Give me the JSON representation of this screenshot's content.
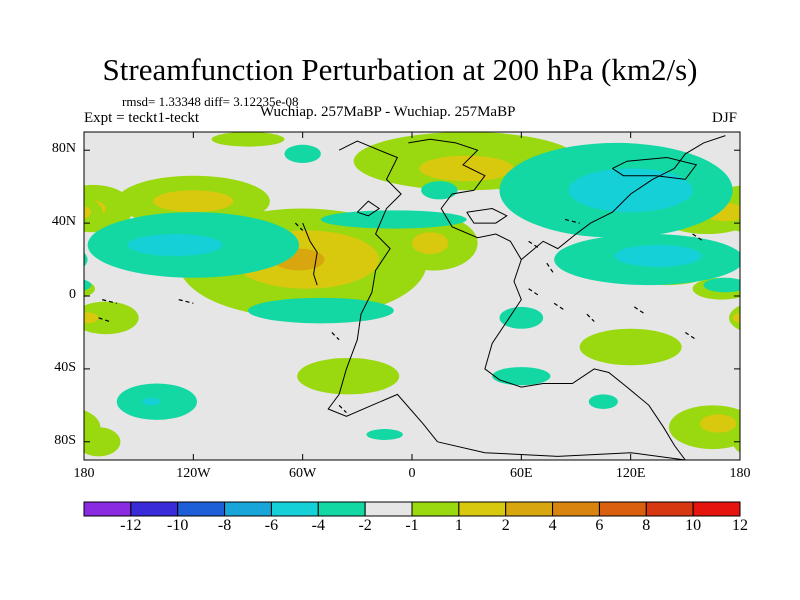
{
  "chart_data": {
    "type": "heatmap",
    "title": "Streamfunction Perturbation at 200 hPa (km2/s)",
    "stats_label": "rmsd= 1.33348 diff= 3.12235e-08",
    "left_label": "Expt = teckt1-teckt",
    "center_label": "Wuchiap. 257MaBP - Wuchiap. 257MaBP",
    "right_label": "DJF",
    "xlim": [
      -180,
      180
    ],
    "ylim": [
      -90,
      90
    ],
    "x_ticks": [
      {
        "value": -180,
        "label": "180"
      },
      {
        "value": -120,
        "label": "120W"
      },
      {
        "value": -60,
        "label": "60W"
      },
      {
        "value": 0,
        "label": "0"
      },
      {
        "value": 60,
        "label": "60E"
      },
      {
        "value": 120,
        "label": "120E"
      },
      {
        "value": 180,
        "label": "180"
      }
    ],
    "y_ticks": [
      {
        "value": 80,
        "label": "80N"
      },
      {
        "value": 40,
        "label": "40N"
      },
      {
        "value": 0,
        "label": "0"
      },
      {
        "value": -40,
        "label": "40S"
      },
      {
        "value": -80,
        "label": "80S"
      }
    ],
    "colorbar": {
      "colors": [
        "#8a2be2",
        "#3a2bd8",
        "#1e5fd8",
        "#18a6d8",
        "#16d0d8",
        "#13d8a4",
        "#e6e6e6",
        "#9ad80f",
        "#d8c90f",
        "#d8a70f",
        "#d8840f",
        "#d8600f",
        "#d8380f",
        "#e6140f"
      ],
      "labels": [
        "-12",
        "-10",
        "-8",
        "-6",
        "-4",
        "-2",
        "-1",
        "1",
        "2",
        "4",
        "6",
        "8",
        "10",
        "12"
      ]
    },
    "regions": [
      {
        "level": 2,
        "color": "#9ad80f",
        "lon": -120,
        "lat": 52,
        "rlon": 42,
        "rlat": 14
      },
      {
        "level": 4,
        "color": "#d8c90f",
        "lon": -120,
        "lat": 52,
        "rlon": 22,
        "rlat": 6
      },
      {
        "level": 2,
        "color": "#9ad80f",
        "lon": -175,
        "lat": 48,
        "rlon": 22,
        "rlat": 13
      },
      {
        "level": 4,
        "color": "#d8c90f",
        "lon": -178,
        "lat": 48,
        "rlon": 10,
        "rlat": 5
      },
      {
        "level": 2,
        "color": "#9ad80f",
        "lon": -60,
        "lat": 18,
        "rlon": 68,
        "rlat": 30
      },
      {
        "level": 4,
        "color": "#d8c90f",
        "lon": -58,
        "lat": 20,
        "rlon": 40,
        "rlat": 16
      },
      {
        "level": 6,
        "color": "#d8a70f",
        "lon": -62,
        "lat": 20,
        "rlon": 14,
        "rlat": 6
      },
      {
        "level": 2,
        "color": "#9ad80f",
        "lon": 12,
        "lat": 29,
        "rlon": 24,
        "rlat": 15
      },
      {
        "level": 4,
        "color": "#d8c90f",
        "lon": 10,
        "lat": 29,
        "rlon": 10,
        "rlat": 6
      },
      {
        "level": 2,
        "color": "#9ad80f",
        "lon": 30,
        "lat": 74,
        "rlon": 62,
        "rlat": 16
      },
      {
        "level": 4,
        "color": "#d8c90f",
        "lon": 30,
        "lat": 70,
        "rlon": 26,
        "rlat": 7
      },
      {
        "level": 2,
        "color": "#9ad80f",
        "lon": -90,
        "lat": 86,
        "rlon": 20,
        "rlat": 4
      },
      {
        "level": 2,
        "color": "#9ad80f",
        "lon": -168,
        "lat": -12,
        "rlon": 18,
        "rlat": 9
      },
      {
        "level": 4,
        "color": "#d8c90f",
        "lon": -178,
        "lat": -12,
        "rlon": 6,
        "rlat": 3
      },
      {
        "level": 2,
        "color": "#9ad80f",
        "lon": -35,
        "lat": -44,
        "rlon": 28,
        "rlat": 10
      },
      {
        "level": 2,
        "color": "#9ad80f",
        "lon": -172,
        "lat": -80,
        "rlon": 12,
        "rlat": 8
      },
      {
        "level": 2,
        "color": "#9ad80f",
        "lon": 162,
        "lat": 46,
        "rlon": 28,
        "rlat": 12
      },
      {
        "level": 4,
        "color": "#d8c90f",
        "lon": 172,
        "lat": 46,
        "rlon": 12,
        "rlat": 5
      },
      {
        "level": 2,
        "color": "#9ad80f",
        "lon": 165,
        "lat": -72,
        "rlon": 24,
        "rlat": 12
      },
      {
        "level": 4,
        "color": "#d8c90f",
        "lon": 168,
        "lat": -70,
        "rlon": 10,
        "rlat": 5
      },
      {
        "level": 2,
        "color": "#9ad80f",
        "lon": 120,
        "lat": -28,
        "rlon": 28,
        "rlat": 10
      },
      {
        "level": 2,
        "color": "#9ad80f",
        "lon": 170,
        "lat": 4,
        "rlon": 16,
        "rlat": 6
      },
      {
        "level": 2,
        "color": "#9ad80f",
        "lon": 140,
        "lat": 12,
        "rlon": 22,
        "rlat": 6
      },
      {
        "level": -2,
        "color": "#13d8a4",
        "lon": -120,
        "lat": 28,
        "rlon": 58,
        "rlat": 18
      },
      {
        "level": -4,
        "color": "#16d0d8",
        "lon": -130,
        "lat": 28,
        "rlon": 26,
        "rlat": 6
      },
      {
        "level": -2,
        "color": "#13d8a4",
        "lon": -50,
        "lat": -8,
        "rlon": 40,
        "rlat": 7
      },
      {
        "level": -2,
        "color": "#13d8a4",
        "lon": -10,
        "lat": 42,
        "rlon": 40,
        "rlat": 5
      },
      {
        "level": -2,
        "color": "#13d8a4",
        "lon": 15,
        "lat": 58,
        "rlon": 10,
        "rlat": 5
      },
      {
        "level": -2,
        "color": "#13d8a4",
        "lon": -60,
        "lat": 78,
        "rlon": 10,
        "rlat": 5
      },
      {
        "level": -2,
        "color": "#13d8a4",
        "lon": 112,
        "lat": 58,
        "rlon": 64,
        "rlat": 26
      },
      {
        "level": -4,
        "color": "#16d0d8",
        "lon": 120,
        "lat": 58,
        "rlon": 34,
        "rlat": 12
      },
      {
        "level": -2,
        "color": "#13d8a4",
        "lon": 130,
        "lat": 20,
        "rlon": 52,
        "rlat": 14
      },
      {
        "level": -4,
        "color": "#16d0d8",
        "lon": 135,
        "lat": 22,
        "rlon": 24,
        "rlat": 6
      },
      {
        "level": -2,
        "color": "#13d8a4",
        "lon": -140,
        "lat": -58,
        "rlon": 22,
        "rlat": 10
      },
      {
        "level": -4,
        "color": "#16d0d8",
        "lon": -143,
        "lat": -58,
        "rlon": 5,
        "rlat": 2
      },
      {
        "level": -2,
        "color": "#13d8a4",
        "lon": 60,
        "lat": -12,
        "rlon": 12,
        "rlat": 6
      },
      {
        "level": -2,
        "color": "#13d8a4",
        "lon": 60,
        "lat": -44,
        "rlon": 16,
        "rlat": 5
      },
      {
        "level": -2,
        "color": "#13d8a4",
        "lon": -15,
        "lat": -76,
        "rlon": 10,
        "rlat": 3
      },
      {
        "level": -2,
        "color": "#13d8a4",
        "lon": 105,
        "lat": -58,
        "rlon": 8,
        "rlat": 4
      },
      {
        "level": -2,
        "color": "#13d8a4",
        "lon": 172,
        "lat": 6,
        "rlon": 12,
        "rlat": 4
      }
    ],
    "coastlines": [
      [
        [
          -40,
          80
        ],
        [
          -30,
          85
        ],
        [
          -18,
          80
        ],
        [
          -8,
          76
        ],
        [
          -14,
          64
        ],
        [
          -6,
          56
        ],
        [
          -14,
          48
        ],
        [
          -20,
          34
        ],
        [
          -12,
          26
        ],
        [
          -20,
          14
        ],
        [
          -22,
          2
        ],
        [
          -28,
          -10
        ],
        [
          -30,
          -24
        ],
        [
          -36,
          -40
        ],
        [
          -40,
          -54
        ],
        [
          -46,
          -62
        ],
        [
          -36,
          -66
        ],
        [
          -22,
          -60
        ],
        [
          -8,
          -54
        ],
        [
          6,
          -70
        ],
        [
          14,
          -80
        ]
      ],
      [
        [
          -2,
          84
        ],
        [
          10,
          86
        ],
        [
          24,
          84
        ],
        [
          36,
          80
        ],
        [
          28,
          72
        ],
        [
          40,
          66
        ],
        [
          34,
          58
        ],
        [
          22,
          56
        ],
        [
          16,
          48
        ],
        [
          22,
          38
        ],
        [
          36,
          32
        ],
        [
          46,
          34
        ],
        [
          54,
          30
        ],
        [
          60,
          20
        ],
        [
          56,
          8
        ],
        [
          60,
          -2
        ],
        [
          52,
          -14
        ],
        [
          44,
          -26
        ],
        [
          40,
          -40
        ],
        [
          48,
          -46
        ],
        [
          60,
          -50
        ],
        [
          72,
          -48
        ],
        [
          88,
          -48
        ],
        [
          100,
          -40
        ],
        [
          108,
          -42
        ],
        [
          118,
          -50
        ],
        [
          130,
          -60
        ],
        [
          138,
          -72
        ],
        [
          144,
          -82
        ],
        [
          150,
          -90
        ]
      ],
      [
        [
          60,
          20
        ],
        [
          72,
          30
        ],
        [
          80,
          26
        ],
        [
          90,
          34
        ],
        [
          98,
          40
        ],
        [
          110,
          46
        ],
        [
          120,
          56
        ],
        [
          132,
          64
        ],
        [
          144,
          70
        ],
        [
          150,
          78
        ],
        [
          160,
          84
        ],
        [
          172,
          88
        ]
      ],
      [
        [
          14,
          -80
        ],
        [
          40,
          -86
        ],
        [
          80,
          -88
        ],
        [
          120,
          -86
        ],
        [
          150,
          -90
        ]
      ],
      [
        [
          -60,
          40
        ],
        [
          -56,
          30
        ],
        [
          -52,
          24
        ],
        [
          -54,
          12
        ],
        [
          -52,
          6
        ]
      ],
      [
        [
          110,
          70
        ],
        [
          118,
          74
        ],
        [
          140,
          76
        ],
        [
          156,
          72
        ],
        [
          150,
          64
        ],
        [
          134,
          66
        ],
        [
          116,
          66
        ],
        [
          110,
          70
        ]
      ],
      [
        [
          30,
          46
        ],
        [
          44,
          48
        ],
        [
          52,
          44
        ],
        [
          46,
          40
        ],
        [
          34,
          40
        ],
        [
          30,
          46
        ]
      ],
      [
        [
          -30,
          46
        ],
        [
          -24,
          52
        ],
        [
          -18,
          48
        ],
        [
          -24,
          44
        ],
        [
          -30,
          46
        ]
      ]
    ],
    "dashes": [
      [
        [
          -64,
          40
        ],
        [
          -60,
          36
        ]
      ],
      [
        [
          64,
          30
        ],
        [
          70,
          26
        ]
      ],
      [
        [
          74,
          18
        ],
        [
          78,
          12
        ]
      ],
      [
        [
          64,
          4
        ],
        [
          70,
          0
        ]
      ],
      [
        [
          78,
          -4
        ],
        [
          84,
          -8
        ]
      ],
      [
        [
          96,
          -10
        ],
        [
          100,
          -14
        ]
      ],
      [
        [
          122,
          -6
        ],
        [
          128,
          -10
        ]
      ],
      [
        [
          150,
          -20
        ],
        [
          156,
          -24
        ]
      ],
      [
        [
          -128,
          -2
        ],
        [
          -120,
          -4
        ]
      ],
      [
        [
          -170,
          -2
        ],
        [
          -162,
          -4
        ]
      ],
      [
        [
          -44,
          -20
        ],
        [
          -40,
          -24
        ]
      ],
      [
        [
          -40,
          -60
        ],
        [
          -36,
          -64
        ]
      ],
      [
        [
          84,
          42
        ],
        [
          92,
          40
        ]
      ],
      [
        [
          154,
          34
        ],
        [
          160,
          30
        ]
      ],
      [
        [
          -172,
          -12
        ],
        [
          -166,
          -14
        ]
      ]
    ]
  }
}
